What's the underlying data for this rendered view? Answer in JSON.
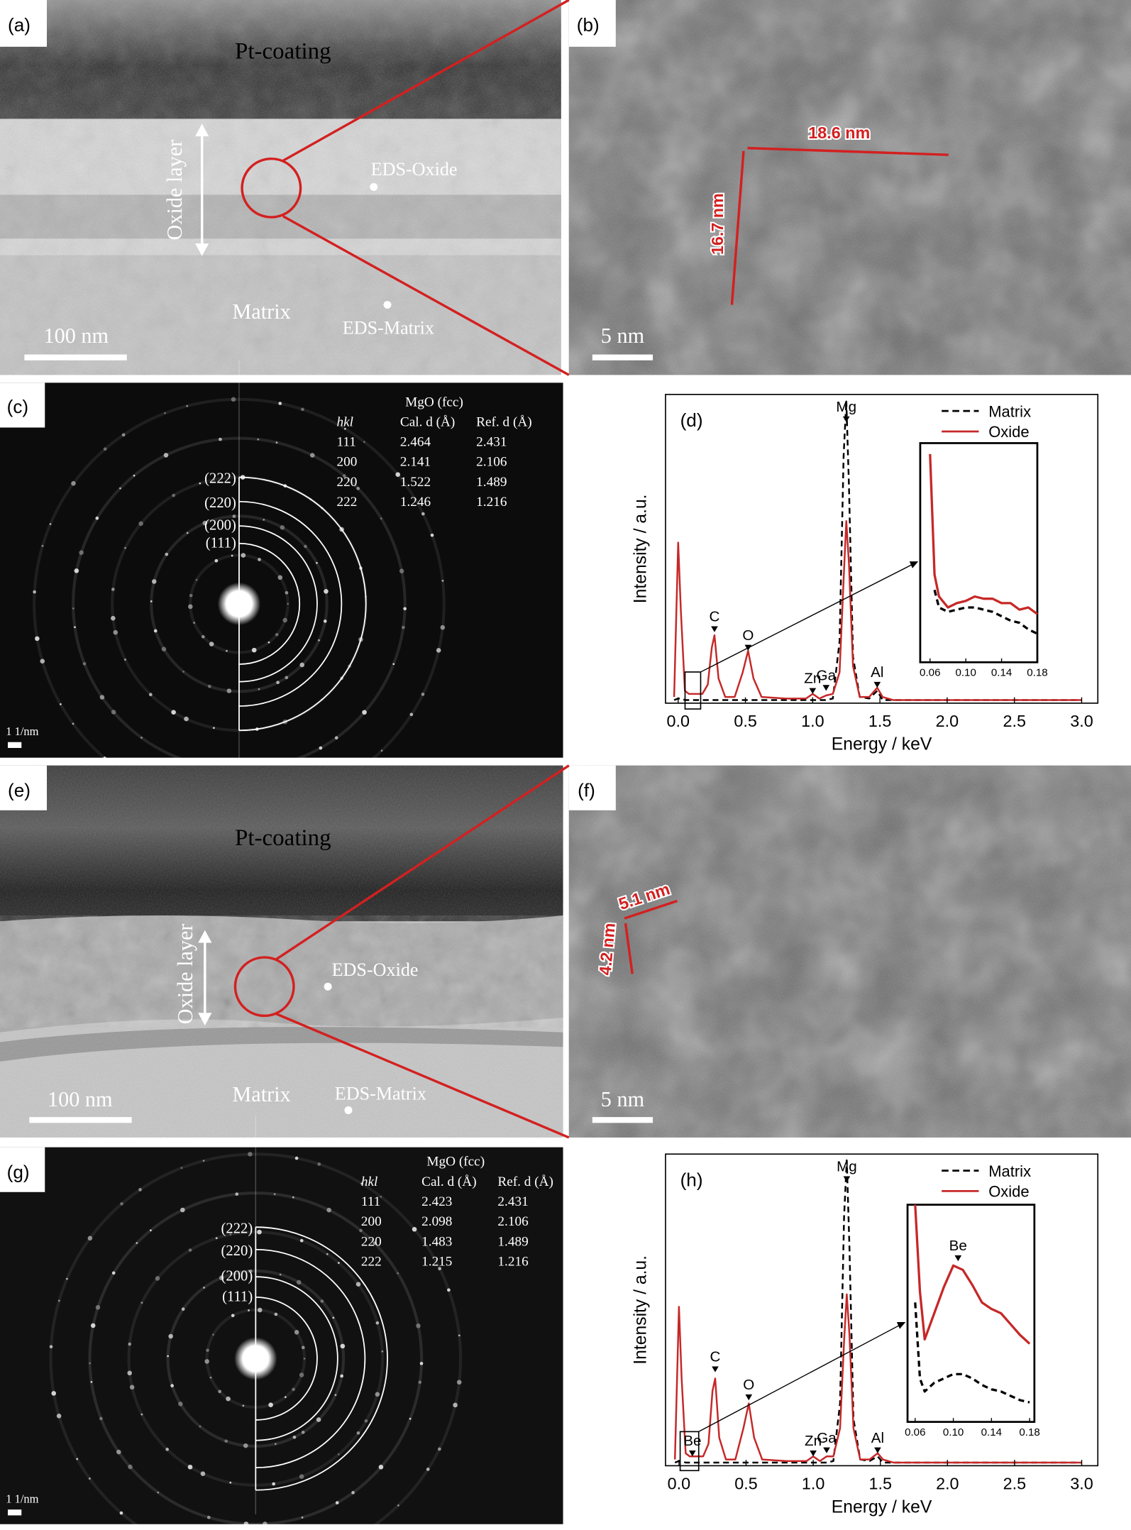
{
  "panels": {
    "a": {
      "label": "(a)",
      "pt": "Pt-coating",
      "oxide_layer": "Oxide layer",
      "eds_oxide": "EDS-Oxide",
      "matrix": "Matrix",
      "eds_matrix": "EDS-Matrix",
      "scale": "100 nm"
    },
    "b": {
      "label": "(b)",
      "width": "18.6 nm",
      "height": "16.7 nm",
      "scale": "5 nm"
    },
    "c": {
      "label": "(c)",
      "table": {
        "title": "MgO (fcc)",
        "header": [
          "hkl",
          "Cal. d (Å)",
          "Ref. d (Å)"
        ],
        "rows": [
          [
            "111",
            "2.464",
            "2.431"
          ],
          [
            "200",
            "2.141",
            "2.106"
          ],
          [
            "220",
            "1.522",
            "1.489"
          ],
          [
            "222",
            "1.246",
            "1.216"
          ]
        ]
      },
      "rings": [
        "(222)",
        "(220)",
        "(200)",
        "(111)"
      ],
      "scale": "1 1/nm"
    },
    "e": {
      "label": "(e)",
      "pt": "Pt-coating",
      "oxide_layer": "Oxide layer",
      "eds_oxide": "EDS-Oxide",
      "matrix": "Matrix",
      "eds_matrix": "EDS-Matrix",
      "scale": "100 nm"
    },
    "f": {
      "label": "(f)",
      "width": "5.1 nm",
      "height": "4.2 nm",
      "scale": "5 nm"
    },
    "g": {
      "label": "(g)",
      "table": {
        "title": "MgO (fcc)",
        "header": [
          "hkl",
          "Cal. d (Å)",
          "Ref. d (Å)"
        ],
        "rows": [
          [
            "111",
            "2.423",
            "2.431"
          ],
          [
            "200",
            "2.098",
            "2.106"
          ],
          [
            "220",
            "1.483",
            "1.489"
          ],
          [
            "222",
            "1.215",
            "1.216"
          ]
        ]
      },
      "rings": [
        "(222)",
        "(220)",
        "(200)",
        "(111)"
      ],
      "scale": "1 1/nm"
    }
  },
  "chart_data": [
    {
      "type": "line",
      "label": "(d)",
      "xlabel": "Energy / keV",
      "ylabel": "Intensity / a.u.",
      "x": [
        -0.03,
        0,
        0.02,
        0.05,
        0.08,
        0.12,
        0.18,
        0.22,
        0.25,
        0.27,
        0.3,
        0.35,
        0.42,
        0.48,
        0.52,
        0.56,
        0.62,
        0.8,
        0.95,
        1.0,
        1.05,
        1.1,
        1.15,
        1.2,
        1.23,
        1.25,
        1.27,
        1.3,
        1.35,
        1.42,
        1.48,
        1.52,
        1.6,
        2.0,
        2.5,
        3.0
      ],
      "series": [
        {
          "name": "Matrix",
          "color": "#000000",
          "dash": true,
          "values": [
            1,
            1.5,
            1.5,
            1,
            1,
            1,
            1,
            1,
            1,
            1,
            1,
            1,
            1,
            1,
            1,
            1,
            1,
            1,
            1,
            1,
            1,
            1,
            1.5,
            20,
            80,
            98,
            70,
            15,
            2,
            1.5,
            4,
            1,
            1,
            1,
            1,
            1
          ]
        },
        {
          "name": "Oxide",
          "color": "#c62828",
          "values": [
            2,
            52,
            30,
            4,
            3,
            3,
            3,
            6,
            18,
            22,
            8,
            2,
            2,
            10,
            17,
            8,
            2,
            1.5,
            1.5,
            3,
            1.5,
            2.5,
            3,
            10,
            40,
            59,
            45,
            12,
            2,
            2,
            5,
            2,
            1,
            1,
            1,
            1
          ]
        }
      ],
      "xlim": [
        -0.094,
        3.12
      ],
      "ylim": [
        0,
        100
      ],
      "xticks": [
        {
          "value": 0,
          "label": "0.0"
        },
        0.5,
        {
          "value": 1,
          "label": "1.0"
        },
        1.5,
        {
          "value": 2,
          "label": "2.0"
        },
        2.5,
        {
          "value": 3,
          "label": "3.0"
        }
      ],
      "legend": "upper right",
      "annotations": [
        {
          "text": "C",
          "x": 0.27,
          "y": 23
        },
        {
          "text": "O",
          "x": 0.52,
          "y": 17
        },
        {
          "text": "Zn",
          "x": 1.0,
          "y": 3
        },
        {
          "text": "Ga",
          "x": 1.1,
          "y": 4
        },
        {
          "text": "Mg",
          "x": 1.25,
          "y": 91
        },
        {
          "text": "Al",
          "x": 1.48,
          "y": 5
        }
      ],
      "inset": {
        "x": [
          0.06,
          0.065,
          0.07,
          0.08,
          0.09,
          0.1,
          0.11,
          0.12,
          0.13,
          0.14,
          0.15,
          0.16,
          0.17,
          0.18
        ],
        "series": [
          {
            "color": "#000000",
            "dash": true,
            "values": [
              null,
              33,
              25,
              23,
              24,
              25,
              25,
              24,
              23,
              21,
              19,
              18,
              15,
              13
            ]
          },
          {
            "color": "#c62828",
            "values": [
              95,
              40,
              30,
              25,
              27,
              28,
              30,
              29,
              29,
              27,
              27,
              24,
              25,
              22
            ]
          }
        ],
        "xlim": [
          0.049,
          0.18
        ],
        "ylim": [
          0,
          100
        ],
        "xticks": [
          0.06,
          {
            "value": 0.1,
            "label": "0.10"
          },
          0.14,
          0.18
        ],
        "annotations": []
      }
    },
    {
      "type": "line",
      "label": "(h)",
      "xlabel": "Energy / keV",
      "ylabel": "Intensity / a.u.",
      "x": [
        -0.03,
        0,
        0.02,
        0.05,
        0.08,
        0.12,
        0.18,
        0.22,
        0.25,
        0.27,
        0.3,
        0.35,
        0.42,
        0.48,
        0.52,
        0.56,
        0.62,
        0.8,
        0.95,
        1.0,
        1.05,
        1.1,
        1.15,
        1.2,
        1.23,
        1.25,
        1.27,
        1.3,
        1.35,
        1.42,
        1.48,
        1.52,
        1.6,
        2.0,
        2.5,
        3.0
      ],
      "series": [
        {
          "name": "Matrix",
          "color": "#000000",
          "dash": true,
          "values": [
            1,
            1.5,
            1.5,
            1,
            1,
            1,
            1,
            1,
            1,
            1,
            1,
            1,
            1,
            1,
            1,
            1,
            1,
            1,
            1,
            1,
            1,
            1,
            1.5,
            20,
            80,
            98,
            70,
            15,
            2,
            1.5,
            3,
            1,
            1,
            1,
            1,
            1
          ]
        },
        {
          "name": "Oxide",
          "color": "#c62828",
          "values": [
            2,
            51,
            28,
            4,
            3,
            3,
            3,
            7,
            24,
            28,
            9,
            2,
            2,
            12,
            20,
            9,
            2,
            1.5,
            1.5,
            3,
            1.5,
            3,
            3,
            12,
            40,
            55,
            42,
            12,
            2,
            2,
            4,
            2,
            1,
            1,
            1,
            1
          ]
        }
      ],
      "xlim": [
        -0.1,
        3.12
      ],
      "ylim": [
        0,
        100
      ],
      "xticks": [
        {
          "value": 0,
          "label": "0.0"
        },
        0.5,
        {
          "value": 1,
          "label": "1.0"
        },
        1.5,
        {
          "value": 2,
          "label": "2.0"
        },
        2.5,
        {
          "value": 3,
          "label": "3.0"
        }
      ],
      "legend": "upper right",
      "annotations": [
        {
          "text": "Be",
          "x": 0.1,
          "y": 3
        },
        {
          "text": "C",
          "x": 0.27,
          "y": 30
        },
        {
          "text": "O",
          "x": 0.52,
          "y": 21
        },
        {
          "text": "Zn",
          "x": 1.0,
          "y": 3
        },
        {
          "text": "Ga",
          "x": 1.1,
          "y": 4
        },
        {
          "text": "Mg",
          "x": 1.25,
          "y": 91
        },
        {
          "text": "Al",
          "x": 1.48,
          "y": 4
        }
      ],
      "inset": {
        "x": [
          0.06,
          0.065,
          0.07,
          0.08,
          0.09,
          0.1,
          0.11,
          0.12,
          0.13,
          0.14,
          0.15,
          0.16,
          0.17,
          0.18
        ],
        "series": [
          {
            "color": "#000000",
            "dash": true,
            "values": [
              55,
              20,
              14,
              18,
              20,
              22,
              22,
              20,
              17,
              15,
              14,
              12,
              10,
              9
            ]
          },
          {
            "color": "#c62828",
            "values": [
              100,
              60,
              38,
              50,
              62,
              72,
              70,
              63,
              55,
              52,
              50,
              45,
              40,
              36
            ]
          }
        ],
        "xlim": [
          0.052,
          0.185
        ],
        "ylim": [
          0,
          100
        ],
        "xticks": [
          0.06,
          {
            "value": 0.1,
            "label": "0.10"
          },
          0.14,
          0.18
        ],
        "annotations": [
          {
            "text": "Be",
            "x": 0.105,
            "y": 74
          }
        ]
      }
    }
  ]
}
